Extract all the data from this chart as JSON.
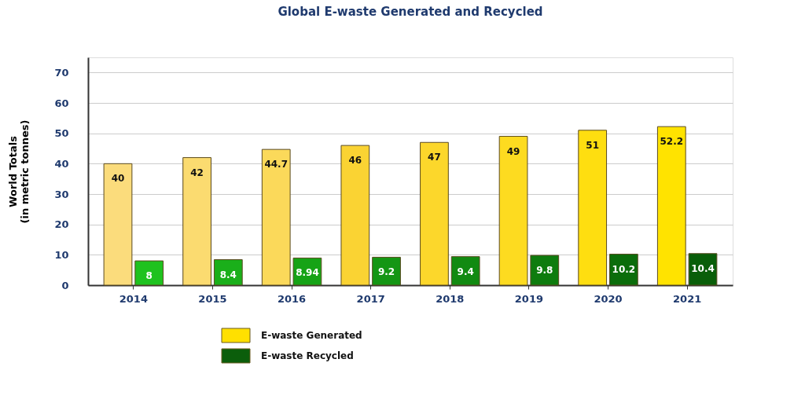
{
  "chart_data": {
    "type": "bar",
    "title": "Global E-waste Generated and Recycled",
    "ylabel": "World Totals\n(in metric tonnes)",
    "categories": [
      "2014",
      "2015",
      "2016",
      "2017",
      "2018",
      "2019",
      "2020",
      "2021"
    ],
    "series": [
      {
        "name": "E-waste Generated",
        "color": "#ffe000",
        "colors": [
          "#fbdc7c",
          "#fbdb70",
          "#fbd95a",
          "#fad333",
          "#fcd72b",
          "#fddb20",
          "#fede10",
          "#ffe300"
        ],
        "values": [
          40,
          42,
          44.7,
          46,
          47,
          49,
          51,
          52.2
        ]
      },
      {
        "name": "E-waste Recycled",
        "color": "#0b5e0b",
        "colors": [
          "#1fc21f",
          "#1aaf1a",
          "#16a316",
          "#149614",
          "#118a11",
          "#0e7c0e",
          "#0b6d0b",
          "#095e09"
        ],
        "values": [
          8,
          8.4,
          8.94,
          9.2,
          9.4,
          9.8,
          10.2,
          10.4
        ]
      }
    ],
    "ylim": [
      0,
      75
    ],
    "yticks": [
      0,
      10,
      20,
      30,
      40,
      50,
      60,
      70
    ],
    "grid": "y",
    "legend": "bottom",
    "data_labels": true
  }
}
